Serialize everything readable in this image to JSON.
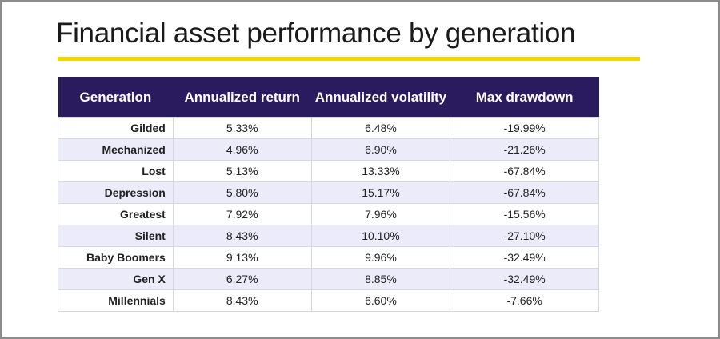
{
  "title": "Financial asset performance by generation",
  "colors": {
    "header_bg": "#2a1a5e",
    "accent_rule": "#f2d600",
    "row_stripe": "#ecebfa",
    "frame_border": "#8c8c8c"
  },
  "table": {
    "headers": {
      "generation": "Generation",
      "annualized_return": "Annualized return",
      "annualized_volatility": "Annualized volatility",
      "max_drawdown": "Max drawdown"
    },
    "rows": [
      {
        "generation": "Gilded",
        "return": "5.33%",
        "volatility": "6.48%",
        "drawdown": "-19.99%"
      },
      {
        "generation": "Mechanized",
        "return": "4.96%",
        "volatility": "6.90%",
        "drawdown": "-21.26%"
      },
      {
        "generation": "Lost",
        "return": "5.13%",
        "volatility": "13.33%",
        "drawdown": "-67.84%"
      },
      {
        "generation": "Depression",
        "return": "5.80%",
        "volatility": "15.17%",
        "drawdown": "-67.84%"
      },
      {
        "generation": "Greatest",
        "return": "7.92%",
        "volatility": "7.96%",
        "drawdown": "-15.56%"
      },
      {
        "generation": "Silent",
        "return": "8.43%",
        "volatility": "10.10%",
        "drawdown": "-27.10%"
      },
      {
        "generation": "Baby Boomers",
        "return": "9.13%",
        "volatility": "9.96%",
        "drawdown": "-32.49%"
      },
      {
        "generation": "Gen X",
        "return": "6.27%",
        "volatility": "8.85%",
        "drawdown": "-32.49%"
      },
      {
        "generation": "Millennials",
        "return": "8.43%",
        "volatility": "6.60%",
        "drawdown": "-7.66%"
      }
    ]
  }
}
